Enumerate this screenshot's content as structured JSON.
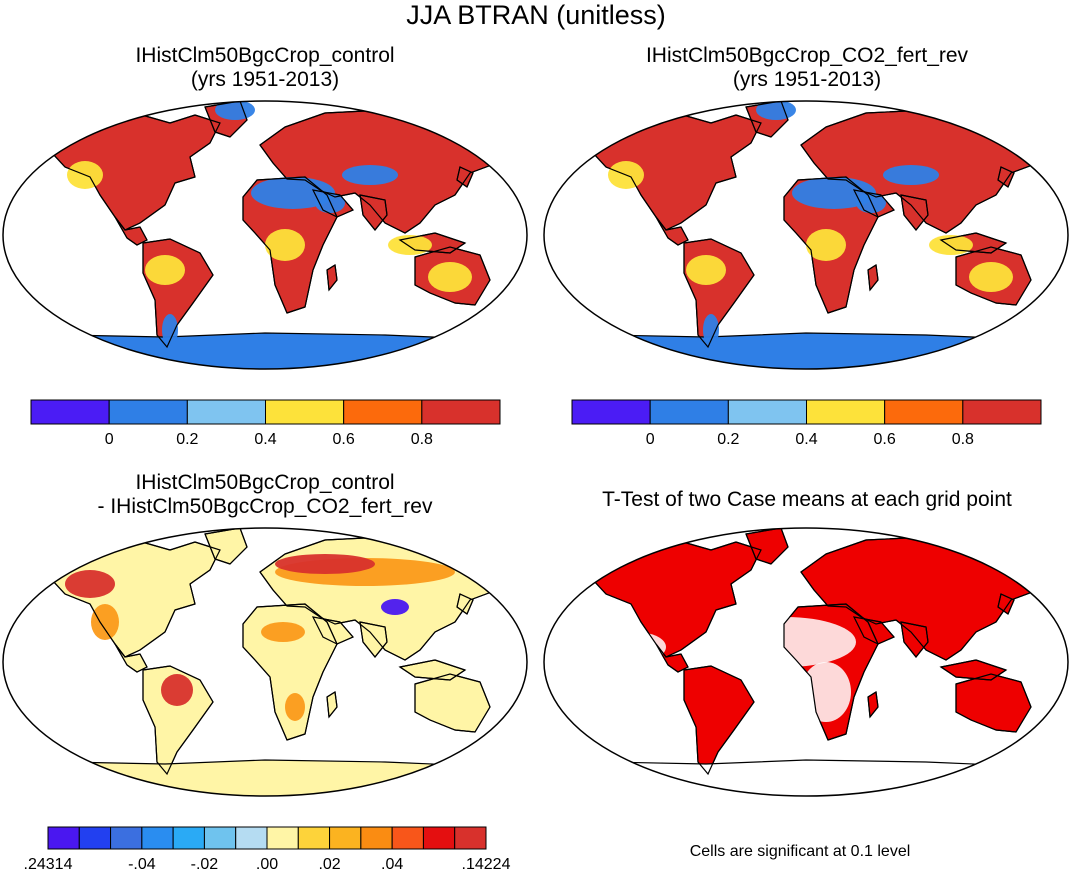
{
  "title": "JJA BTRAN (unitless)",
  "panels": [
    {
      "id": "control",
      "title_line1": "IHistClm50BgcCrop_control",
      "title_line2": "(yrs 1951-2013)"
    },
    {
      "id": "co2",
      "title_line1": "IHistClm50BgcCrop_CO2_fert_rev",
      "title_line2": "(yrs 1951-2013)"
    },
    {
      "id": "diff",
      "title_line1": "IHistClm50BgcCrop_control",
      "title_line2": "- IHistClm50BgcCrop_CO2_fert_rev"
    },
    {
      "id": "ttest",
      "title_line1": "T-Test of two Case means at each grid point",
      "title_line2": ""
    }
  ],
  "colorbar_main": {
    "colors": [
      "#4b1cf5",
      "#2f7fe6",
      "#7fc4f0",
      "#fde23a",
      "#fc6a0c",
      "#d8312c"
    ],
    "labels": [
      "0",
      "0.2",
      "0.4",
      "0.6",
      "0.8"
    ]
  },
  "colorbar_diff": {
    "colors": [
      "#4a17f0",
      "#2240f0",
      "#3b6fe0",
      "#2a8df0",
      "#2aaaf5",
      "#6fc3ee",
      "#b5dcf2",
      "#fff5a6",
      "#fdd33a",
      "#fbb320",
      "#fa8c12",
      "#f8561a",
      "#e40f10",
      "#d8312c"
    ],
    "labels": [
      ".24314",
      "-.04",
      "-.02",
      ".00",
      ".02",
      ".04",
      ".14224"
    ],
    "label_positions": [
      0,
      3,
      5,
      7,
      9,
      11,
      14
    ]
  },
  "significance_note": "Cells are significant at 0.1 level",
  "map_colors": {
    "land_main": "#d8312c",
    "desert_main": "#2f7fe6",
    "ice_main": "#2f7fe6",
    "moist_main": "#fde23a",
    "land_diff": "#fff5a6",
    "diff_pos": "#d8312c",
    "diff_mid": "#fb9a1a",
    "diff_neg": "#4a17f0",
    "significant": "#ee0000"
  }
}
